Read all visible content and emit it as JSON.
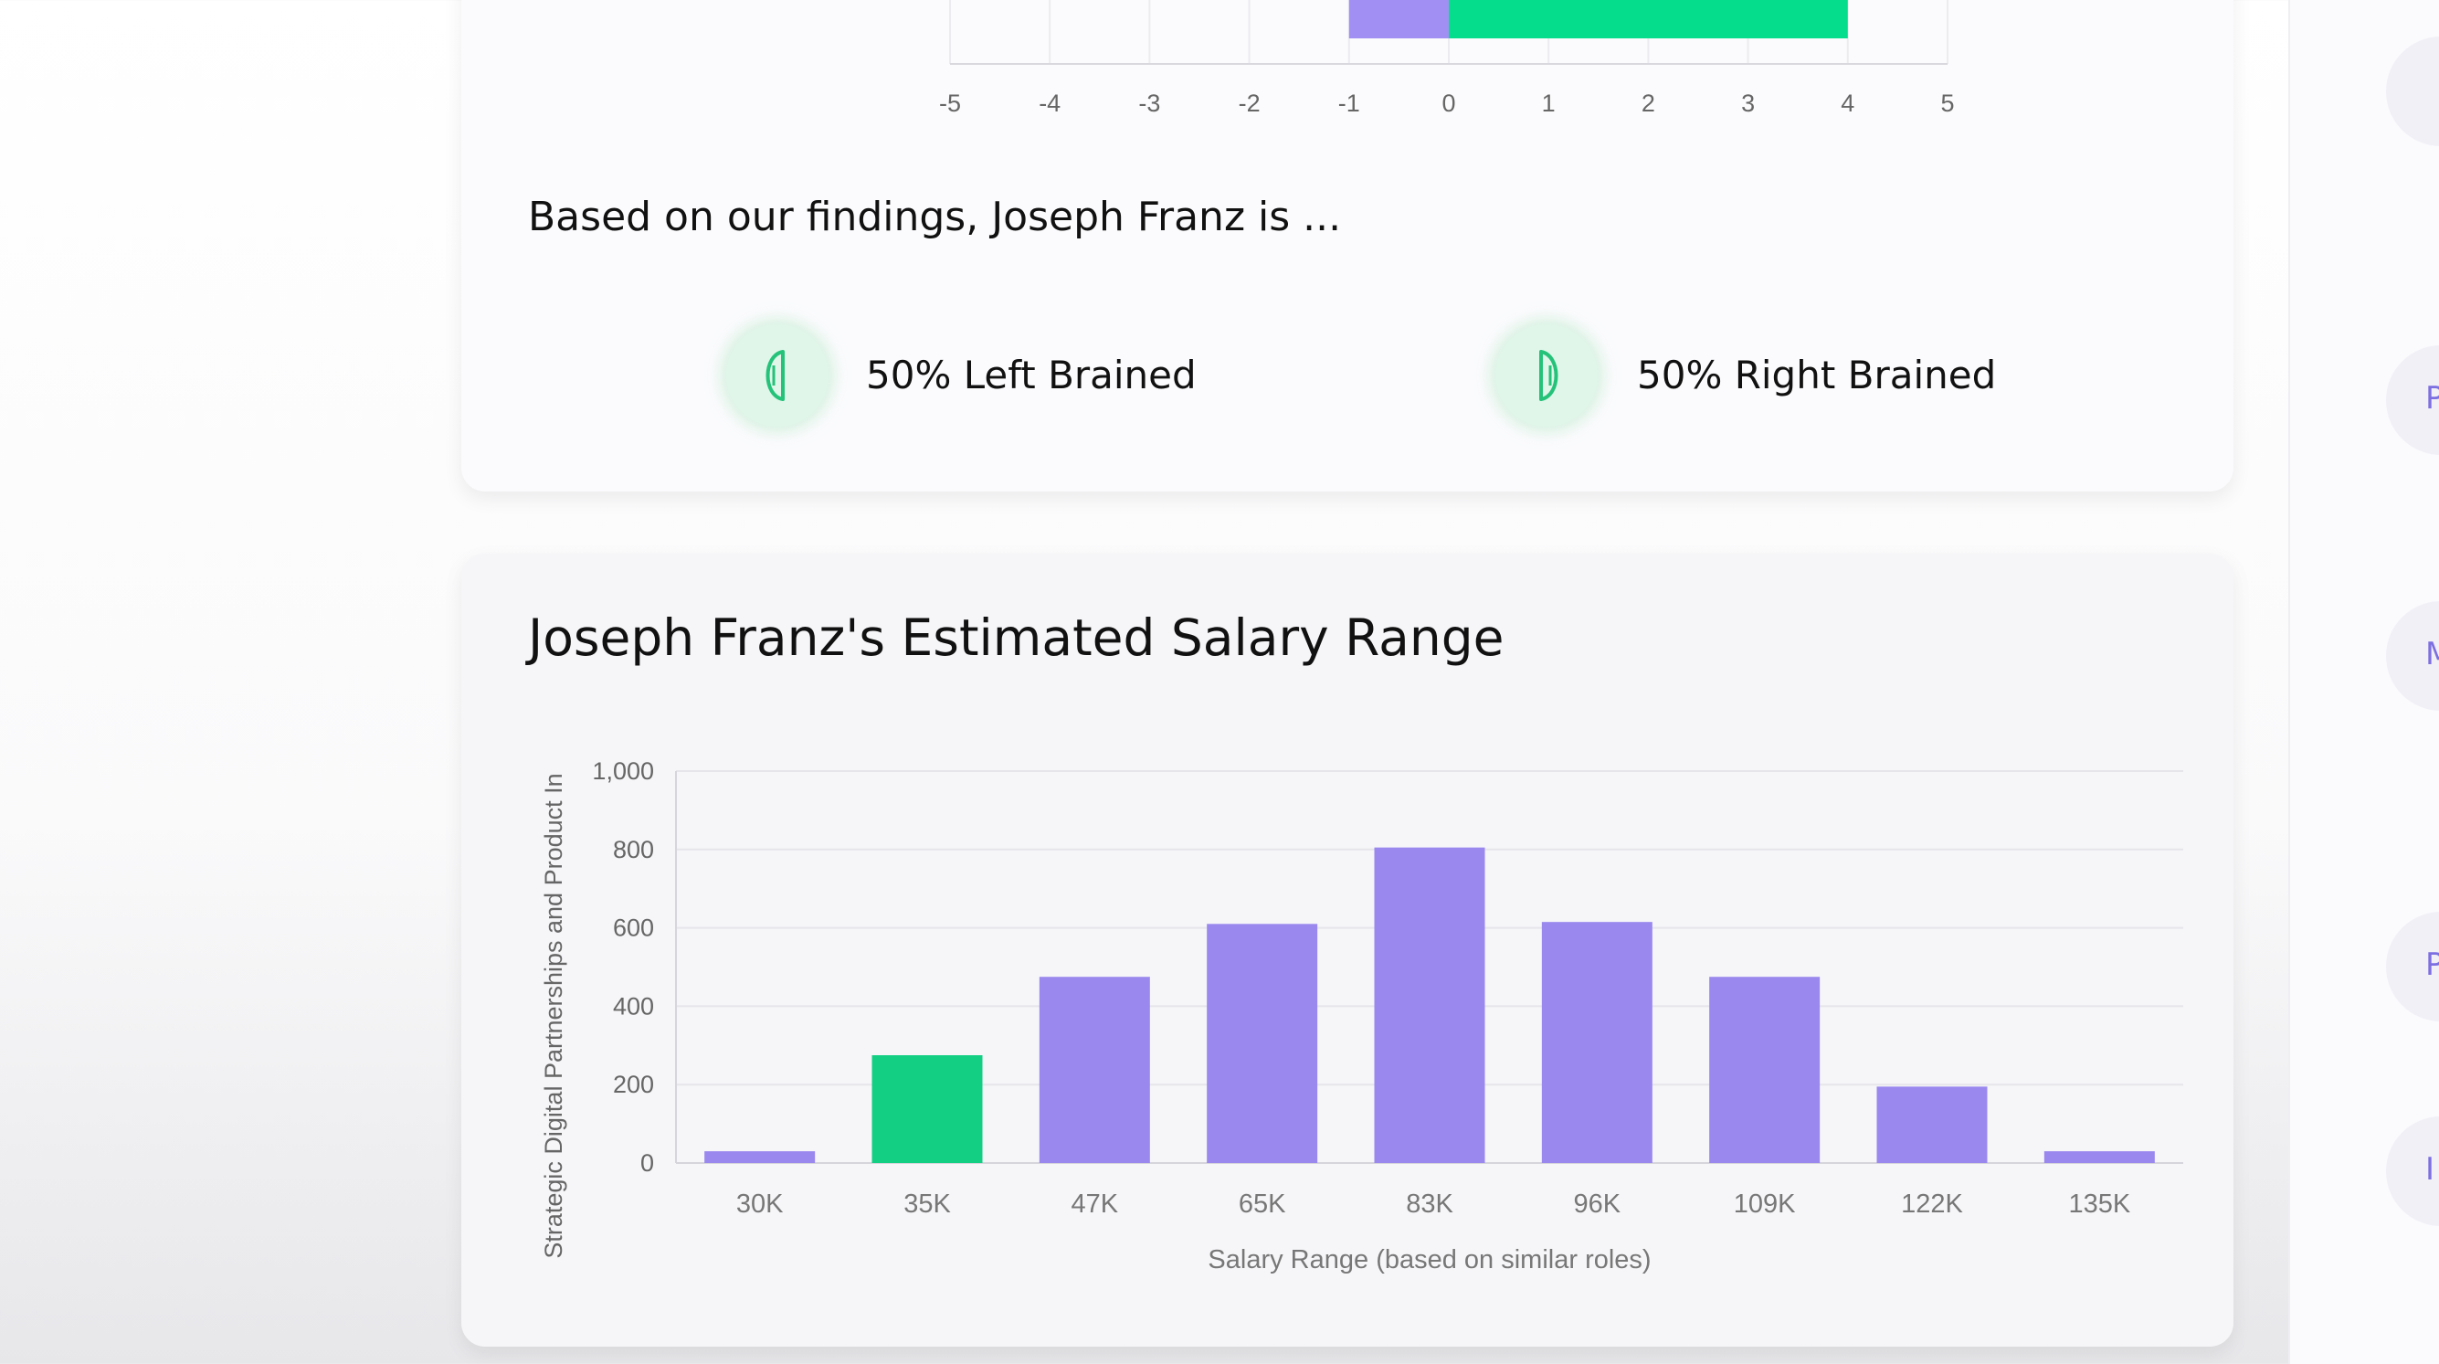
{
  "findings": {
    "text": "Based on our findings, Joseph Franz is ...",
    "left_label": "50% Left Brained",
    "right_label": "50% Right Brained",
    "left_icon": "left-brain-icon",
    "right_icon": "right-brain-icon"
  },
  "salary": {
    "title": "Joseph Franz's Estimated Salary Range"
  },
  "right_panel": {
    "letters": [
      "P",
      "M",
      "P",
      "I"
    ]
  },
  "chart_data": [
    {
      "type": "bar",
      "orientation": "horizontal",
      "note": "top portion cropped; only one bar row visible",
      "x": {
        "ticks": [
          -5,
          -4,
          -3,
          -2,
          -1,
          0,
          1,
          2,
          3,
          4,
          5
        ],
        "range": [
          -5,
          5
        ]
      },
      "series": [
        {
          "values": [
            {
              "from": -1,
              "to": 0
            }
          ],
          "color": "#a28ff3"
        },
        {
          "values": [
            {
              "from": 0,
              "to": 4
            }
          ],
          "color": "#05dd8d"
        }
      ]
    },
    {
      "type": "bar",
      "title": "",
      "xlabel": "Salary Range (based on similar roles)",
      "ylabel": "Strategic Digital  Partnerships and Product In",
      "categories": [
        "30K",
        "35K",
        "47K",
        "65K",
        "83K",
        "96K",
        "109K",
        "122K",
        "135K"
      ],
      "values": [
        30,
        275,
        475,
        610,
        805,
        615,
        475,
        195,
        30
      ],
      "highlight_index": 1,
      "ylim": [
        0,
        1000
      ],
      "yticks": [
        "0",
        "200",
        "400",
        "600",
        "800",
        "1,000"
      ],
      "grid": true,
      "colors": {
        "bar": "#9a88ee",
        "highlight": "#13cf84"
      }
    }
  ]
}
